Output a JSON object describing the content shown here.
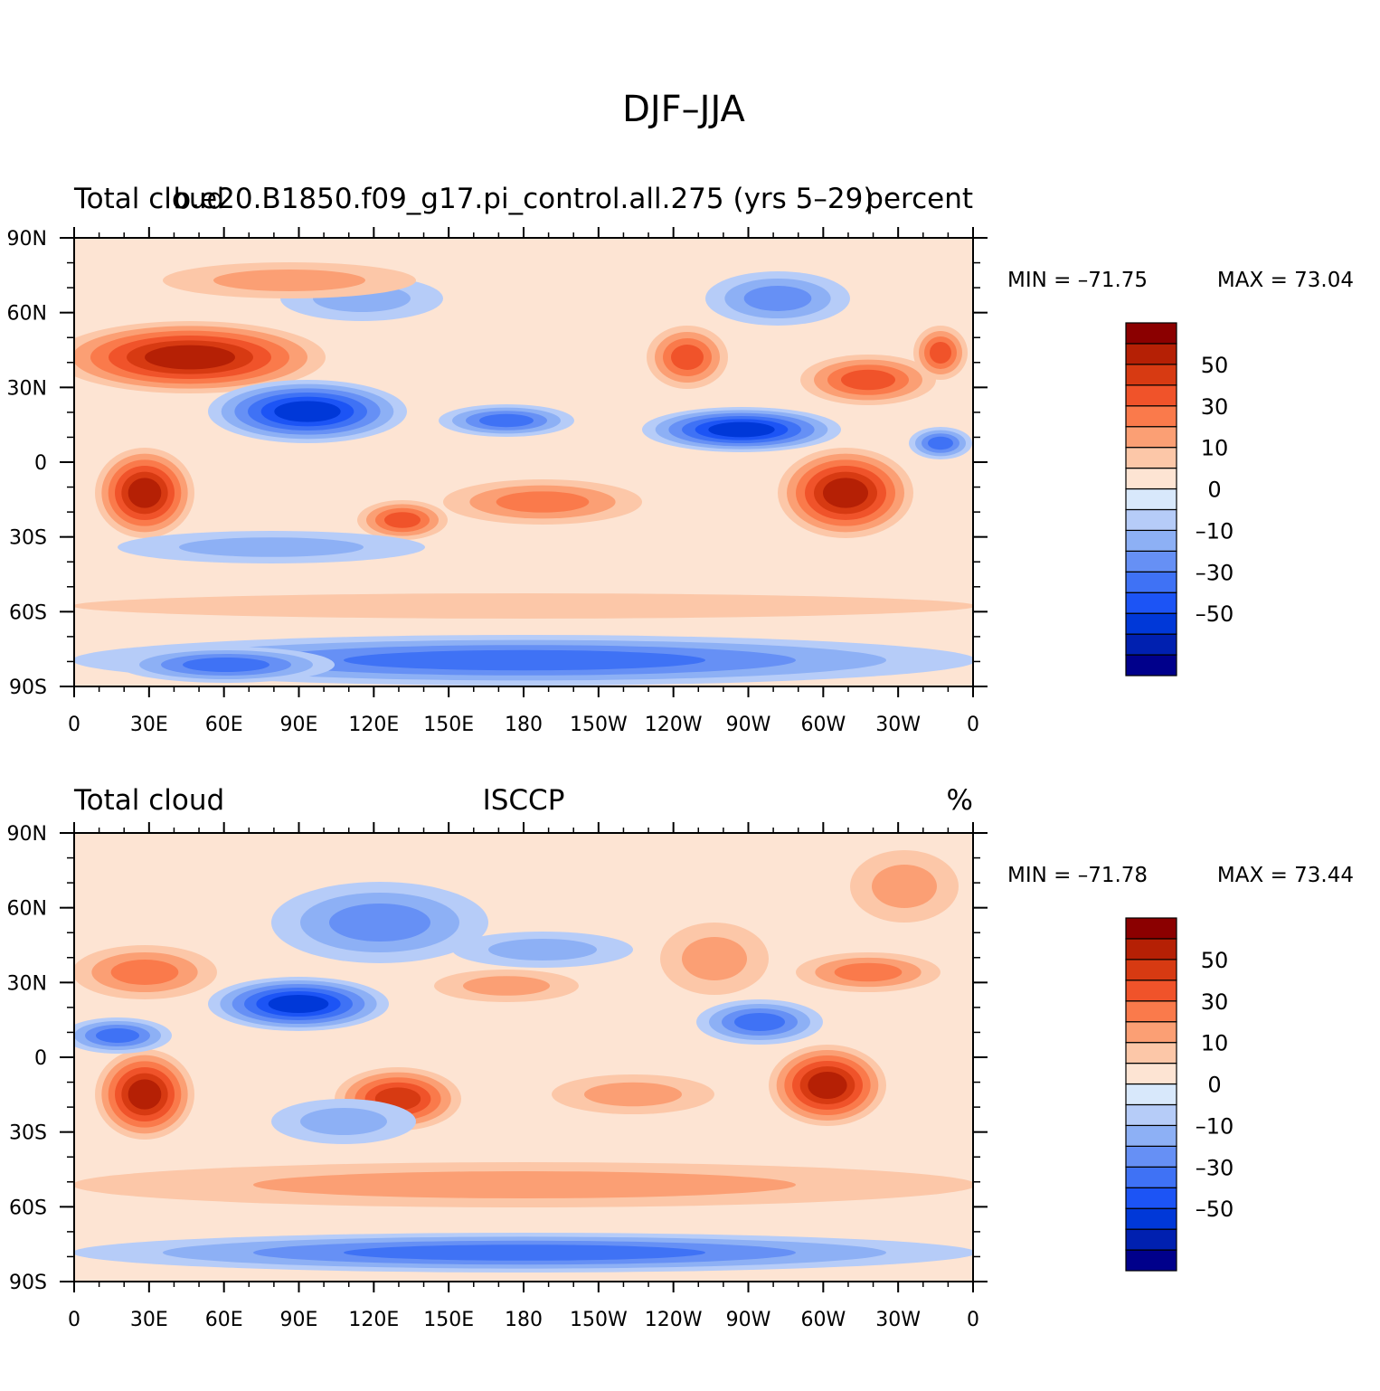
{
  "figure": {
    "title": "DJF–JJA"
  },
  "palette": {
    "colors": [
      "#00008b",
      "#0020b0",
      "#0038d8",
      "#1c54f5",
      "#3f72f5",
      "#6690f5",
      "#8db0f5",
      "#b6ccf8",
      "#d8e8fb",
      "#fde4d3",
      "#fcc7a8",
      "#fb9f74",
      "#fa7a4b",
      "#f0532a",
      "#d73a12",
      "#b52005",
      "#8b0000"
    ],
    "levels": [
      "-70",
      "-60",
      "-50",
      "-40",
      "-30",
      "-20",
      "-10",
      "-5",
      "0",
      "5",
      "10",
      "20",
      "30",
      "40",
      "50",
      "60",
      "70"
    ]
  },
  "chart_data": [
    {
      "type": "heatmap",
      "title_left": "Total cloud",
      "title_center": "b.e20.B1850.f09_g17.pi_control.all.275 (yrs 5–29)",
      "title_right": "percent",
      "min_label": "MIN = –71.75",
      "max_label": "MAX =   73.04",
      "colorbar_labels": [
        "50",
        "30",
        "10",
        "0",
        "–10",
        "–30",
        "–50"
      ],
      "x_ticks": [
        "0",
        "30E",
        "60E",
        "90E",
        "120E",
        "150E",
        "180",
        "150W",
        "120W",
        "90W",
        "60W",
        "30W",
        "0"
      ],
      "y_ticks": [
        "90N",
        "60N",
        "30N",
        "0",
        "30S",
        "60S",
        "90S"
      ],
      "xlim": [
        0,
        360
      ],
      "ylim": [
        -90,
        90
      ]
    },
    {
      "type": "heatmap",
      "title_left": "Total cloud",
      "title_center": "ISCCP",
      "title_right": "%",
      "min_label": "MIN = –71.78",
      "max_label": "MAX =   73.44",
      "colorbar_labels": [
        "50",
        "30",
        "10",
        "0",
        "–10",
        "–30",
        "–50"
      ],
      "x_ticks": [
        "0",
        "30E",
        "60E",
        "90E",
        "120E",
        "150E",
        "180",
        "150W",
        "120W",
        "90W",
        "60W",
        "30W",
        "0"
      ],
      "y_ticks": [
        "90N",
        "60N",
        "30N",
        "0",
        "30S",
        "60S",
        "90S"
      ],
      "xlim": [
        0,
        360
      ],
      "ylim": [
        -90,
        90
      ]
    }
  ]
}
